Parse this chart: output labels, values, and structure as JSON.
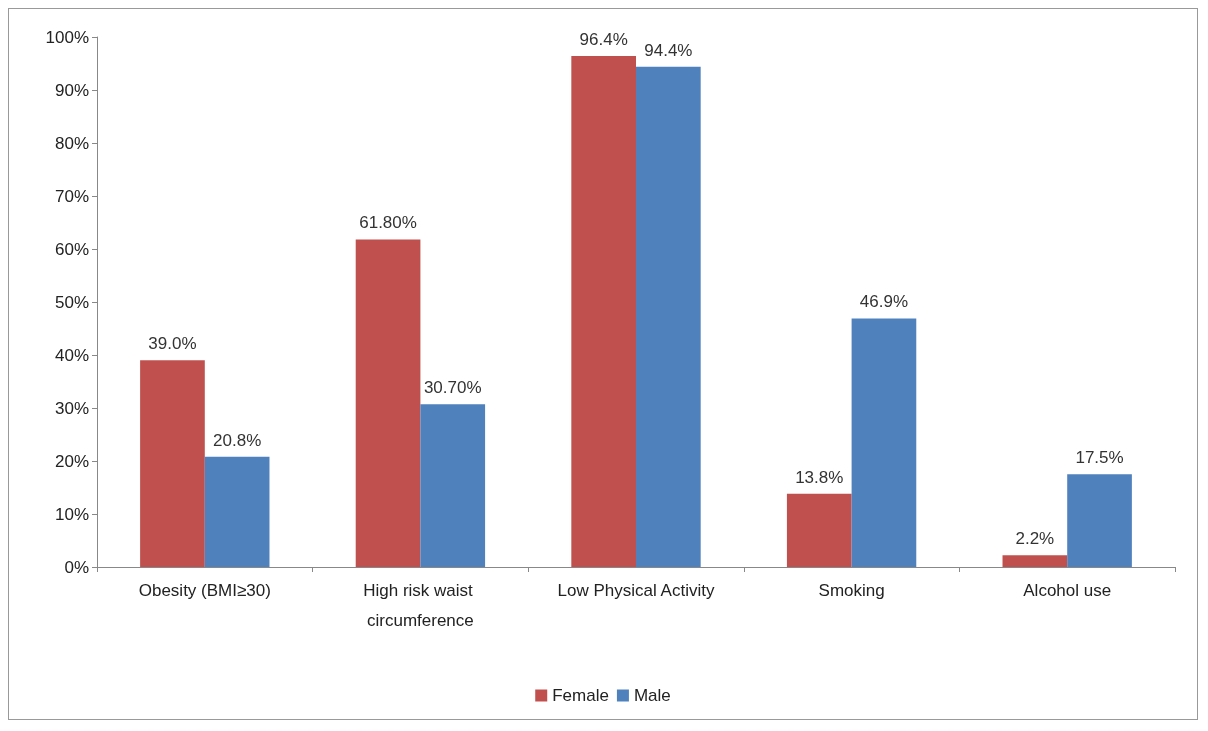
{
  "chart_data": {
    "type": "bar",
    "categories": [
      "Obesity (BMI≥30)",
      "High risk waist circumference",
      "Low Physical Activity",
      "Smoking",
      "Alcohol use"
    ],
    "series": [
      {
        "name": "Female",
        "color": "#c0504d",
        "values": [
          39.0,
          61.8,
          96.4,
          13.8,
          2.2
        ],
        "value_labels": [
          "39.0%",
          "61.80%",
          "96.4%",
          "13.8%",
          "2.2%"
        ]
      },
      {
        "name": "Male",
        "color": "#4f81bd",
        "values": [
          20.8,
          30.7,
          94.4,
          46.9,
          17.5
        ],
        "value_labels": [
          "20.8%",
          "30.70%",
          "94.4%",
          "46.9%",
          "17.5%"
        ]
      }
    ],
    "ylim": [
      0,
      100
    ],
    "yticks": [
      {
        "value": 0,
        "label": "0%"
      },
      {
        "value": 10,
        "label": "10%"
      },
      {
        "value": 20,
        "label": "20%"
      },
      {
        "value": 30,
        "label": "30%"
      },
      {
        "value": 40,
        "label": "40%"
      },
      {
        "value": 50,
        "label": "50%"
      },
      {
        "value": 60,
        "label": "60%"
      },
      {
        "value": 70,
        "label": "70%"
      },
      {
        "value": 80,
        "label": "80%"
      },
      {
        "value": 90,
        "label": "90%"
      },
      {
        "value": 100,
        "label": "100%"
      }
    ],
    "grid": false,
    "legend": "bottom"
  }
}
